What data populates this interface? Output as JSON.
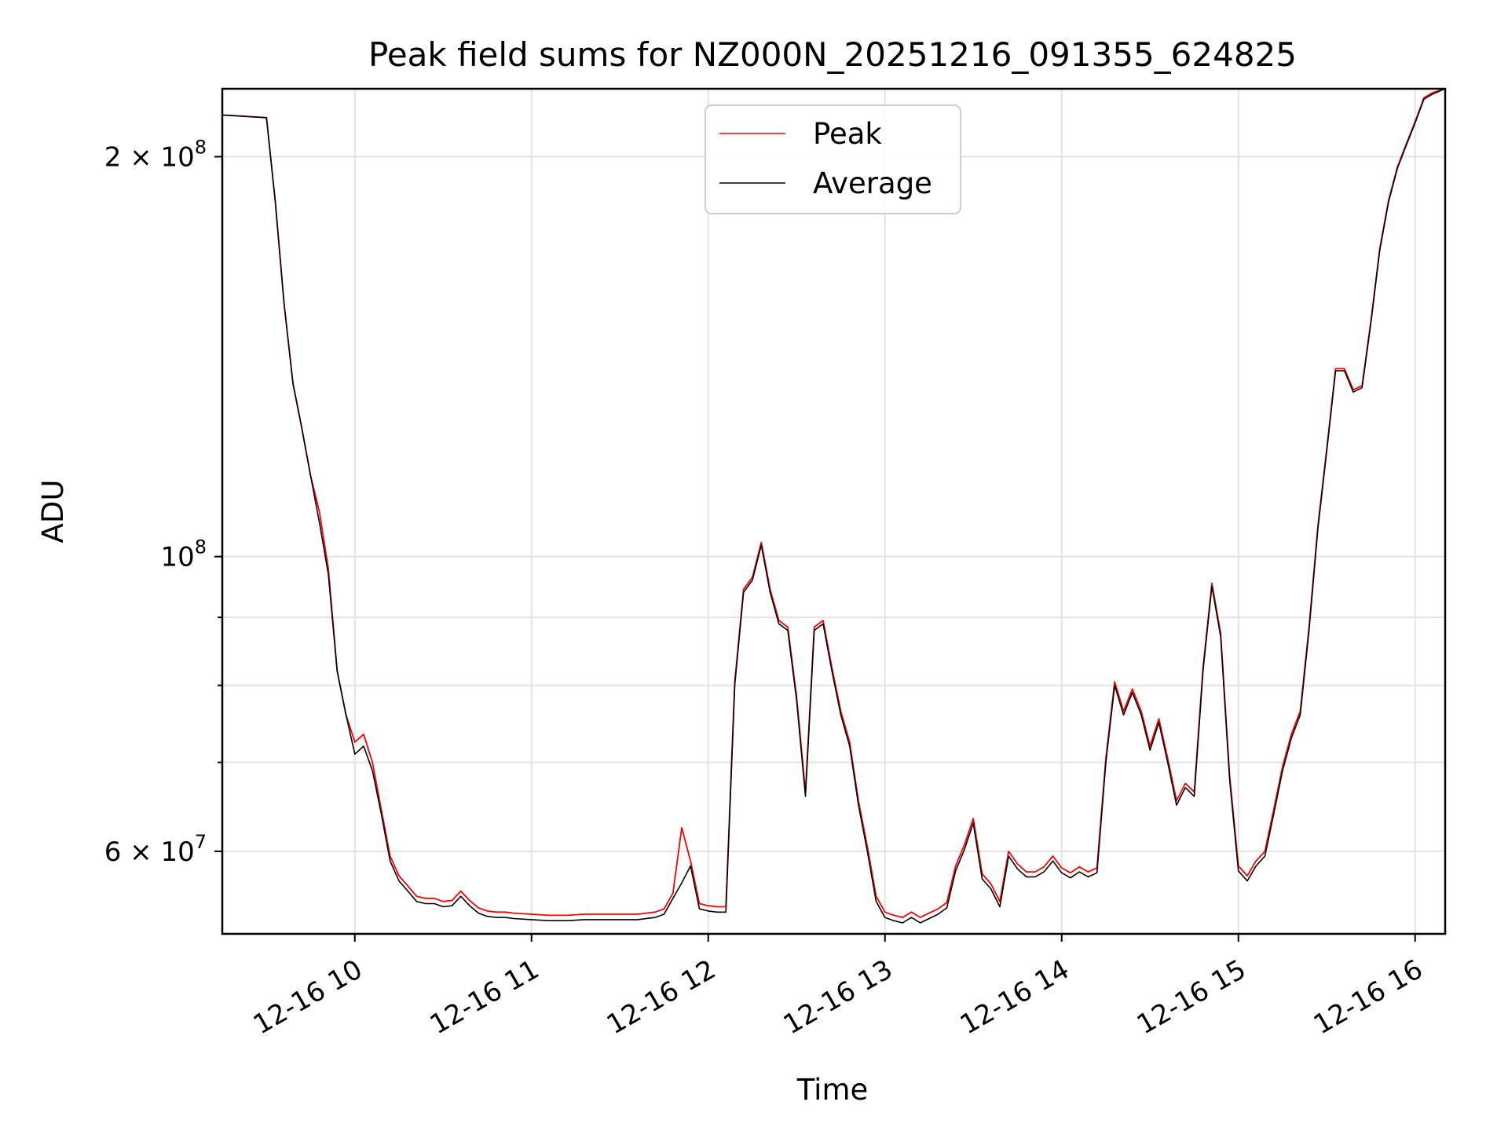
{
  "chart_data": {
    "type": "line",
    "title": "Peak field sums for NZ000N_20251216_091355_624825",
    "xlabel": "Time",
    "ylabel": "ADU",
    "yscale": "log",
    "ylim": [
      52000000,
      225000000
    ],
    "xlim_hours": [
      9.25,
      16.17
    ],
    "x_tick_hours": [
      10,
      11,
      12,
      13,
      14,
      15,
      16
    ],
    "x_tick_labels": [
      "12-16 10",
      "12-16 11",
      "12-16 12",
      "12-16 13",
      "12-16 14",
      "12-16 15",
      "12-16 16"
    ],
    "y_major_ticks": [
      {
        "value": 200000000,
        "label_base": "2 × 10",
        "label_exp": "8"
      },
      {
        "value": 100000000,
        "label_base": "10",
        "label_exp": "8"
      },
      {
        "value": 60000000,
        "label_base": "6 × 10",
        "label_exp": "7"
      }
    ],
    "y_minor_ticks": [
      70000000,
      80000000,
      90000000
    ],
    "grid": true,
    "legend_position": "upper center",
    "series": [
      {
        "name": "Peak",
        "color": "#ff0000"
      },
      {
        "name": "Average",
        "color": "#000000"
      }
    ],
    "x": [
      9.25,
      9.5,
      9.55,
      9.6,
      9.65,
      9.7,
      9.75,
      9.8,
      9.85,
      9.9,
      9.95,
      10.0,
      10.05,
      10.1,
      10.15,
      10.2,
      10.25,
      10.3,
      10.35,
      10.4,
      10.45,
      10.5,
      10.55,
      10.6,
      10.65,
      10.7,
      10.75,
      10.8,
      10.85,
      10.9,
      11.0,
      11.1,
      11.2,
      11.3,
      11.4,
      11.5,
      11.6,
      11.7,
      11.75,
      11.8,
      11.85,
      11.9,
      11.95,
      12.0,
      12.05,
      12.1,
      12.15,
      12.2,
      12.25,
      12.3,
      12.35,
      12.4,
      12.45,
      12.5,
      12.55,
      12.6,
      12.65,
      12.7,
      12.75,
      12.8,
      12.85,
      12.9,
      12.95,
      13.0,
      13.05,
      13.1,
      13.15,
      13.2,
      13.25,
      13.3,
      13.35,
      13.4,
      13.45,
      13.5,
      13.55,
      13.6,
      13.65,
      13.7,
      13.75,
      13.8,
      13.85,
      13.9,
      13.95,
      14.0,
      14.05,
      14.1,
      14.15,
      14.2,
      14.25,
      14.3,
      14.35,
      14.4,
      14.45,
      14.5,
      14.55,
      14.6,
      14.65,
      14.7,
      14.75,
      14.8,
      14.85,
      14.9,
      14.95,
      15.0,
      15.05,
      15.1,
      15.15,
      15.2,
      15.25,
      15.3,
      15.35,
      15.4,
      15.45,
      15.5,
      15.55,
      15.6,
      15.65,
      15.7,
      15.75,
      15.8,
      15.85,
      15.9,
      15.95,
      16.0,
      16.05,
      16.1,
      16.17
    ],
    "average": [
      215000000,
      214000000,
      185000000,
      155000000,
      135000000,
      125000000,
      115000000,
      106000000,
      97000000,
      82000000,
      76000000,
      71000000,
      72000000,
      69000000,
      64000000,
      59000000,
      57000000,
      56000000,
      55000000,
      54800000,
      54800000,
      54500000,
      54600000,
      55500000,
      54600000,
      53900000,
      53600000,
      53500000,
      53500000,
      53400000,
      53300000,
      53200000,
      53200000,
      53300000,
      53300000,
      53300000,
      53300000,
      53500000,
      53800000,
      55300000,
      56800000,
      58500000,
      54300000,
      54100000,
      54000000,
      54000000,
      80000000,
      94000000,
      96000000,
      102000000,
      94000000,
      89000000,
      88000000,
      78000000,
      66000000,
      88000000,
      89000000,
      82000000,
      76000000,
      72000000,
      65000000,
      60000000,
      55000000,
      53500000,
      53200000,
      53000000,
      53500000,
      53000000,
      53400000,
      53800000,
      54400000,
      58000000,
      60200000,
      63000000,
      57200000,
      56200000,
      54500000,
      59500000,
      58200000,
      57400000,
      57400000,
      57900000,
      59000000,
      57800000,
      57300000,
      57900000,
      57400000,
      57800000,
      70000000,
      80000000,
      76000000,
      79000000,
      76000000,
      71500000,
      75000000,
      70000000,
      65000000,
      67000000,
      66000000,
      82000000,
      95000000,
      87000000,
      68000000,
      58000000,
      57000000,
      58500000,
      59500000,
      64000000,
      69000000,
      73000000,
      76000000,
      88000000,
      105000000,
      120000000,
      138000000,
      138000000,
      133000000,
      134000000,
      150000000,
      170000000,
      185000000,
      196000000,
      204000000,
      212000000,
      221000000,
      223000000,
      225000000
    ],
    "peak": [
      215000000,
      214000000,
      185000000,
      155000000,
      135000000,
      125000000,
      115000000,
      108000000,
      98000000,
      82000000,
      76000000,
      72500000,
      73500000,
      70000000,
      64500000,
      59500000,
      57500000,
      56500000,
      55500000,
      55300000,
      55300000,
      55000000,
      55100000,
      56000000,
      55100000,
      54400000,
      54100000,
      54000000,
      54000000,
      53900000,
      53800000,
      53700000,
      53700000,
      53800000,
      53800000,
      53800000,
      53800000,
      54000000,
      54300000,
      55800000,
      62500000,
      59000000,
      54800000,
      54600000,
      54500000,
      54500000,
      80500000,
      94500000,
      96500000,
      102500000,
      94500000,
      89500000,
      88500000,
      78500000,
      66500000,
      88500000,
      89500000,
      82500000,
      76500000,
      72500000,
      65500000,
      60500000,
      55500000,
      54000000,
      53700000,
      53500000,
      54000000,
      53500000,
      53900000,
      54300000,
      54900000,
      58500000,
      60700000,
      63500000,
      57700000,
      56700000,
      55000000,
      60000000,
      58700000,
      57900000,
      57900000,
      58400000,
      59500000,
      58300000,
      57800000,
      58400000,
      57900000,
      58300000,
      70500000,
      80500000,
      76500000,
      79500000,
      76500000,
      72000000,
      75500000,
      70500000,
      65500000,
      67500000,
      66500000,
      82500000,
      95500000,
      87500000,
      68500000,
      58500000,
      57500000,
      59000000,
      60000000,
      64500000,
      69500000,
      73500000,
      76500000,
      88500000,
      105500000,
      120500000,
      138500000,
      138500000,
      133500000,
      134500000,
      150500000,
      170500000,
      185500000,
      196500000,
      204500000,
      212500000,
      221500000,
      223500000,
      225000000
    ]
  }
}
